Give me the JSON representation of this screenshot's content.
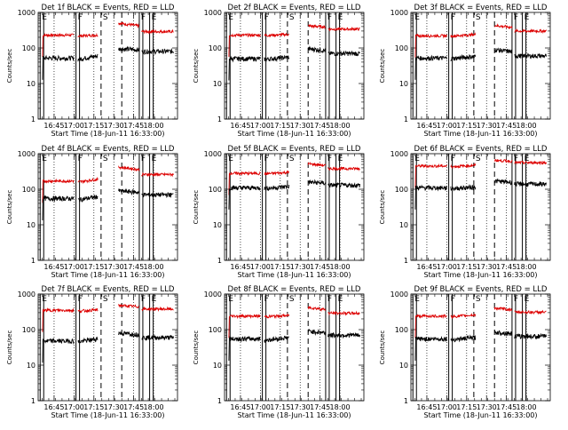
{
  "chart_data": {
    "type": "line",
    "shared": {
      "y_scale": "log",
      "ylim": [
        1,
        1000
      ],
      "xlim_hours": [
        16.55,
        18.3
      ],
      "x_ticks": [
        "16:45",
        "17:00",
        "17:15",
        "17:30",
        "17:45",
        "18:00"
      ],
      "y_ticks": [
        "1",
        "10",
        "100",
        "1000"
      ],
      "ylabel": "Counts/sec",
      "xlabel": "Start Time (18-Jun-11 16:33:00)",
      "colors": {
        "events": "#000000",
        "lld": "#dd0000"
      },
      "event_markers": [
        {
          "label": "E",
          "time": 16.575,
          "style": "solid"
        },
        {
          "label": "F",
          "time": 17.025,
          "style": "solid"
        },
        {
          "label": "S",
          "time": 17.34,
          "style": "dash"
        },
        {
          "label": "",
          "time": 17.6,
          "style": "dash"
        },
        {
          "label": "F",
          "time": 17.82,
          "style": "solid"
        },
        {
          "label": "E",
          "time": 17.95,
          "style": "solid"
        }
      ]
    },
    "panels": [
      {
        "title": "Det 1f BLACK = Events, RED = LLD",
        "lld_level": [
          230,
          220,
          230,
          500,
          290
        ],
        "events_level": [
          52,
          48,
          60,
          95,
          80
        ],
        "gap": [
          17.3,
          17.56
        ]
      },
      {
        "title": "Det 2f BLACK = Events, RED = LLD",
        "lld_level": [
          230,
          225,
          240,
          420,
          340
        ],
        "events_level": [
          50,
          48,
          55,
          95,
          70
        ],
        "gap": [
          17.36,
          17.6
        ]
      },
      {
        "title": "Det 3f BLACK = Events, RED = LLD",
        "lld_level": [
          220,
          215,
          240,
          430,
          300
        ],
        "events_level": [
          52,
          50,
          58,
          90,
          60
        ],
        "gap": [
          17.36,
          17.6
        ]
      },
      {
        "title": "Det 4f BLACK = Events, RED = LLD",
        "lld_level": [
          170,
          160,
          190,
          420,
          260
        ],
        "events_level": [
          55,
          50,
          62,
          90,
          70
        ],
        "gap": [
          17.3,
          17.56
        ]
      },
      {
        "title": "Det 5f BLACK = Events, RED = LLD",
        "lld_level": [
          280,
          270,
          300,
          520,
          380
        ],
        "events_level": [
          110,
          105,
          120,
          160,
          130
        ],
        "gap": [
          17.36,
          17.6
        ]
      },
      {
        "title": "Det 6f BLACK = Events, RED = LLD",
        "lld_level": [
          450,
          430,
          470,
          650,
          560
        ],
        "events_level": [
          110,
          105,
          115,
          170,
          140
        ],
        "gap": [
          17.36,
          17.6
        ]
      },
      {
        "title": "Det 7f BLACK = Events, RED = LLD",
        "lld_level": [
          350,
          330,
          360,
          480,
          380
        ],
        "events_level": [
          48,
          45,
          55,
          80,
          60
        ],
        "gap": [
          17.3,
          17.56
        ]
      },
      {
        "title": "Det 8f BLACK = Events, RED = LLD",
        "lld_level": [
          240,
          230,
          250,
          420,
          290
        ],
        "events_level": [
          55,
          50,
          60,
          90,
          70
        ],
        "gap": [
          17.36,
          17.6
        ]
      },
      {
        "title": "Det 9f BLACK = Events, RED = LLD",
        "lld_level": [
          240,
          230,
          260,
          400,
          310
        ],
        "events_level": [
          55,
          52,
          60,
          85,
          65
        ],
        "gap": [
          17.36,
          17.6
        ]
      }
    ]
  }
}
